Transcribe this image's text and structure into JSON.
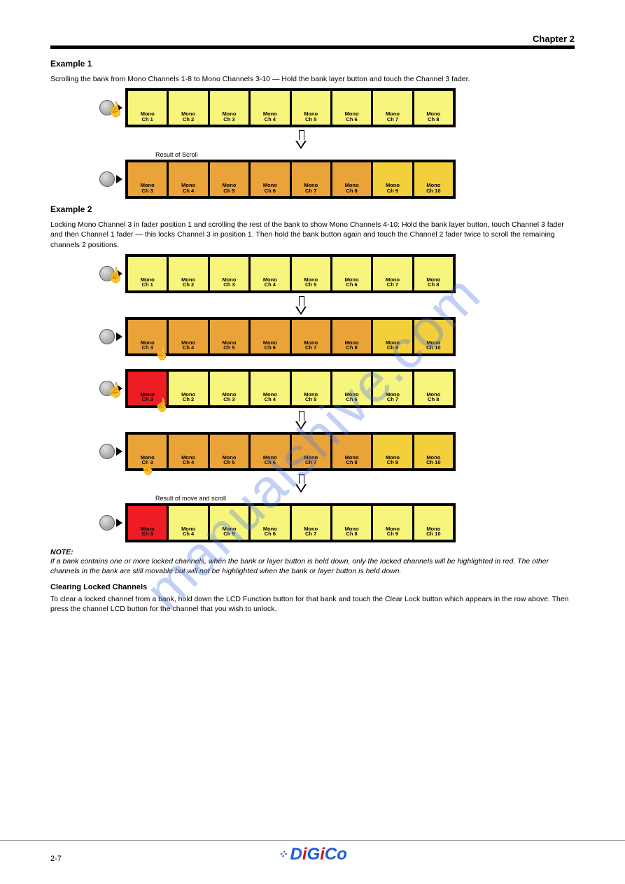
{
  "header": {
    "chapter": "Chapter 2"
  },
  "section1": {
    "heading": "Example 1",
    "text": "Scrolling the bank from Mono Channels 1-8 to Mono Channels 3-10 — Hold the bank layer button and touch the Channel 3 fader."
  },
  "row1a": {
    "cells": [
      {
        "c": "yellow",
        "l": "Mono\nCh 1"
      },
      {
        "c": "yellow",
        "l": "Mono\nCh 2"
      },
      {
        "c": "yellow",
        "l": "Mono\nCh 3"
      },
      {
        "c": "yellow",
        "l": "Mono\nCh 4"
      },
      {
        "c": "yellow",
        "l": "Mono\nCh 5"
      },
      {
        "c": "yellow",
        "l": "Mono\nCh 6"
      },
      {
        "c": "yellow",
        "l": "Mono\nCh 7"
      },
      {
        "c": "yellow",
        "l": "Mono\nCh 8"
      }
    ]
  },
  "result1_label": "Result of Scroll",
  "row1b": {
    "cells": [
      {
        "c": "orange",
        "l": "Mono\nCh 3"
      },
      {
        "c": "orange",
        "l": "Mono\nCh 4"
      },
      {
        "c": "orange",
        "l": "Mono\nCh 5"
      },
      {
        "c": "orange",
        "l": "Mono\nCh 6"
      },
      {
        "c": "orange",
        "l": "Mono\nCh 7"
      },
      {
        "c": "orange",
        "l": "Mono\nCh 8"
      },
      {
        "c": "gold",
        "l": "Mono\nCh 9"
      },
      {
        "c": "gold",
        "l": "Mono\nCh 10"
      }
    ]
  },
  "section2": {
    "heading": "Example 2",
    "text": "Locking Mono Channel 3 in fader position 1 and scrolling the rest of the bank to show Mono Channels 4-10: Hold the bank layer button, touch Channel 3 fader and then Channel 1 fader — this locks Channel 3 in position 1. Then hold the bank button again and touch the Channel 2 fader twice to scroll the remaining channels 2 positions."
  },
  "row2a": {
    "cells": [
      {
        "c": "yellow",
        "l": "Mono\nCh 1"
      },
      {
        "c": "yellow",
        "l": "Mono\nCh 2"
      },
      {
        "c": "yellow",
        "l": "Mono\nCh 3"
      },
      {
        "c": "yellow",
        "l": "Mono\nCh 4"
      },
      {
        "c": "yellow",
        "l": "Mono\nCh 5"
      },
      {
        "c": "yellow",
        "l": "Mono\nCh 6"
      },
      {
        "c": "yellow",
        "l": "Mono\nCh 7"
      },
      {
        "c": "yellow",
        "l": "Mono\nCh 8"
      }
    ]
  },
  "row2b": {
    "cells": [
      {
        "c": "orange",
        "l": "Mono\nCh 3"
      },
      {
        "c": "orange",
        "l": "Mono\nCh 4"
      },
      {
        "c": "orange",
        "l": "Mono\nCh 5"
      },
      {
        "c": "orange",
        "l": "Mono\nCh 6"
      },
      {
        "c": "orange",
        "l": "Mono\nCh 7"
      },
      {
        "c": "orange",
        "l": "Mono\nCh 8"
      },
      {
        "c": "gold",
        "l": "Mono\nCh 9"
      },
      {
        "c": "gold",
        "l": "Mono\nCh 10"
      }
    ]
  },
  "row2c": {
    "cells": [
      {
        "c": "red",
        "l": "Mono\nCh 3"
      },
      {
        "c": "yellow",
        "l": "Mono\nCh 2"
      },
      {
        "c": "yellow",
        "l": "Mono\nCh 3"
      },
      {
        "c": "yellow",
        "l": "Mono\nCh 4"
      },
      {
        "c": "yellow",
        "l": "Mono\nCh 5"
      },
      {
        "c": "yellow",
        "l": "Mono\nCh 6"
      },
      {
        "c": "yellow",
        "l": "Mono\nCh 7"
      },
      {
        "c": "yellow",
        "l": "Mono\nCh 8"
      }
    ]
  },
  "row2d": {
    "cells": [
      {
        "c": "orange",
        "l": "Mono\nCh 3"
      },
      {
        "c": "orange",
        "l": "Mono\nCh 4"
      },
      {
        "c": "orange",
        "l": "Mono\nCh 5"
      },
      {
        "c": "orange",
        "l": "Mono\nCh 6"
      },
      {
        "c": "orange",
        "l": "Mono\nCh 7"
      },
      {
        "c": "orange",
        "l": "Mono\nCh 8"
      },
      {
        "c": "gold",
        "l": "Mono\nCh 9"
      },
      {
        "c": "gold",
        "l": "Mono\nCh 10"
      }
    ]
  },
  "result2_label": "Result of move and scroll",
  "row2e": {
    "cells": [
      {
        "c": "red",
        "l": "Mono\nCh 3"
      },
      {
        "c": "yellow",
        "l": "Mono\nCh 4"
      },
      {
        "c": "yellow",
        "l": "Mono\nCh 5"
      },
      {
        "c": "yellow",
        "l": "Mono\nCh 6"
      },
      {
        "c": "yellow",
        "l": "Mono\nCh 7"
      },
      {
        "c": "yellow",
        "l": "Mono\nCh 8"
      },
      {
        "c": "yellow",
        "l": "Mono\nCh 9"
      },
      {
        "c": "yellow",
        "l": "Mono\nCh 10"
      }
    ]
  },
  "note": {
    "title": "NOTE:",
    "body": "If a bank contains one or more locked channels, when the bank or layer button is held down, only the locked channels will be highlighted in red. The other channels in the bank are still movable but will not be highlighted when the bank or layer button is held down."
  },
  "clear": {
    "heading": "Clearing Locked Channels",
    "body": "To clear a locked channel from a bank, hold down the LCD Function button for that bank and touch the Clear Lock button which appears in the row above. Then press the channel LCD button for the channel that you wish to unlock."
  },
  "footer": {
    "page": "2-7",
    "logo": "DiGiCo"
  },
  "watermark": "manualshive.com",
  "colors": {
    "yellow": "#f7f57b",
    "orange": "#eaa339",
    "gold": "#f3cf3c",
    "red": "#ee1d23",
    "black": "#000000",
    "wm": "rgba(80,120,230,0.35)"
  }
}
